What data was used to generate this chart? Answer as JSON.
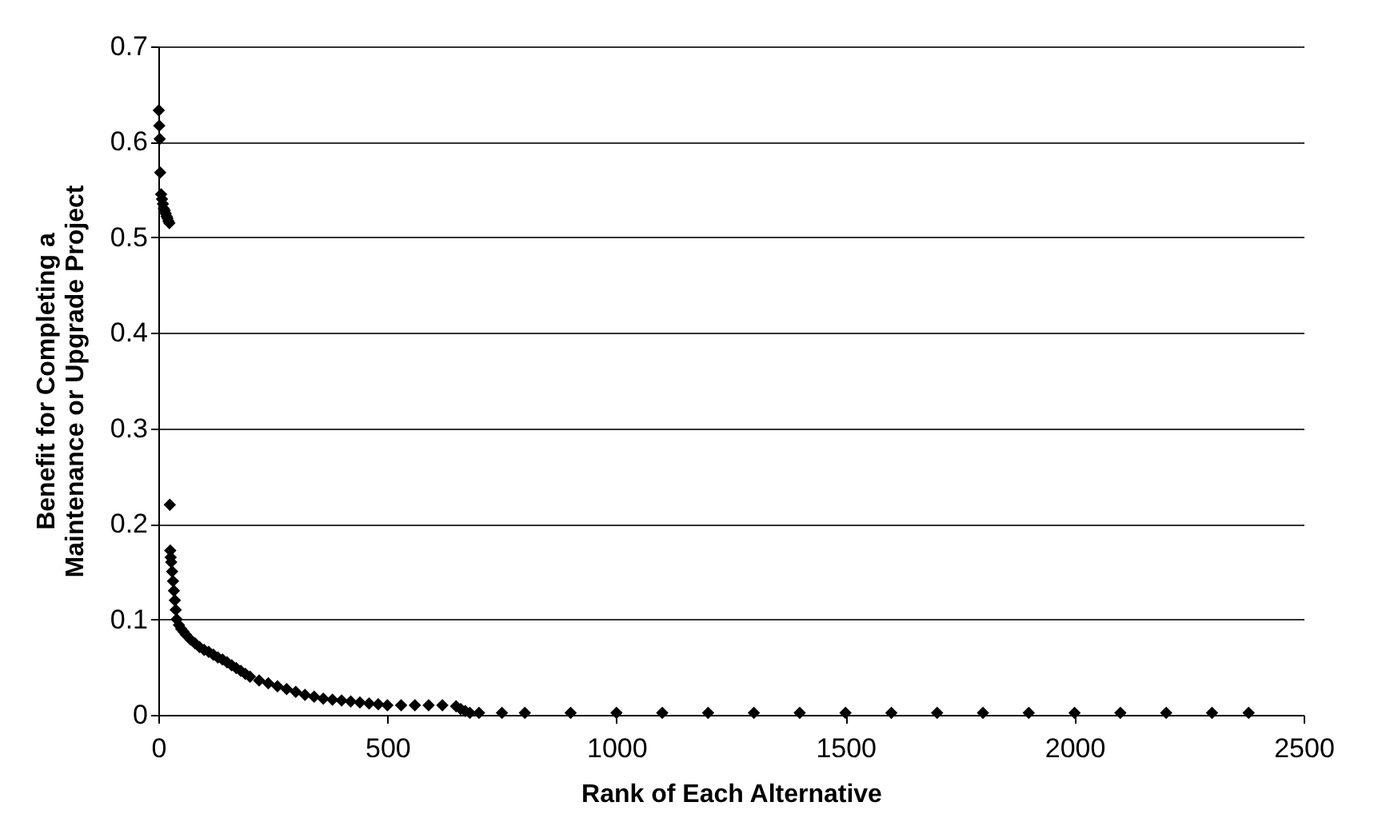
{
  "chart_data": {
    "type": "scatter",
    "xlabel": "Rank of Each Alternative",
    "ylabel": "Benefit for Completing a Maintenance or Upgrade Project",
    "marker": "diamond",
    "grid": "y",
    "xlim": [
      0,
      2500
    ],
    "xticks": [
      0,
      500,
      1000,
      1500,
      2000,
      2500
    ],
    "ylim": [
      0,
      0.7
    ],
    "yticks": [
      0,
      0.1,
      0.2,
      0.3,
      0.4,
      0.5,
      0.6,
      0.7
    ],
    "series": [
      {
        "color": "#000000",
        "x": [
          1,
          2,
          3,
          4,
          6,
          8,
          10,
          12,
          14,
          16,
          18,
          20,
          22,
          24,
          25,
          26,
          27,
          28,
          30,
          32,
          34,
          36,
          38,
          40,
          45,
          50,
          55,
          60,
          70,
          80,
          90,
          100,
          110,
          120,
          130,
          140,
          150,
          160,
          170,
          180,
          190,
          200,
          220,
          240,
          260,
          280,
          300,
          320,
          340,
          360,
          380,
          400,
          420,
          440,
          460,
          480,
          500,
          530,
          560,
          590,
          620,
          650,
          660,
          670,
          680,
          700,
          750,
          800,
          900,
          1000,
          1100,
          1200,
          1300,
          1400,
          1500,
          1600,
          1700,
          1800,
          1900,
          2000,
          2100,
          2200,
          2300,
          2380
        ],
        "values": [
          0.633,
          0.617,
          0.603,
          0.568,
          0.545,
          0.54,
          0.535,
          0.53,
          0.528,
          0.525,
          0.522,
          0.52,
          0.517,
          0.515,
          0.22,
          0.172,
          0.165,
          0.16,
          0.15,
          0.14,
          0.13,
          0.12,
          0.11,
          0.1,
          0.094,
          0.09,
          0.087,
          0.084,
          0.079,
          0.075,
          0.071,
          0.068,
          0.066,
          0.063,
          0.06,
          0.058,
          0.055,
          0.052,
          0.049,
          0.046,
          0.043,
          0.04,
          0.036,
          0.033,
          0.03,
          0.027,
          0.024,
          0.021,
          0.019,
          0.017,
          0.016,
          0.015,
          0.014,
          0.013,
          0.012,
          0.011,
          0.01,
          0.01,
          0.01,
          0.01,
          0.01,
          0.009,
          0.006,
          0.004,
          0.002,
          0.002,
          0.002,
          0.002,
          0.002,
          0.002,
          0.002,
          0.002,
          0.002,
          0.002,
          0.002,
          0.002,
          0.002,
          0.002,
          0.002,
          0.002,
          0.002,
          0.002,
          0.002,
          0.002
        ]
      }
    ]
  }
}
